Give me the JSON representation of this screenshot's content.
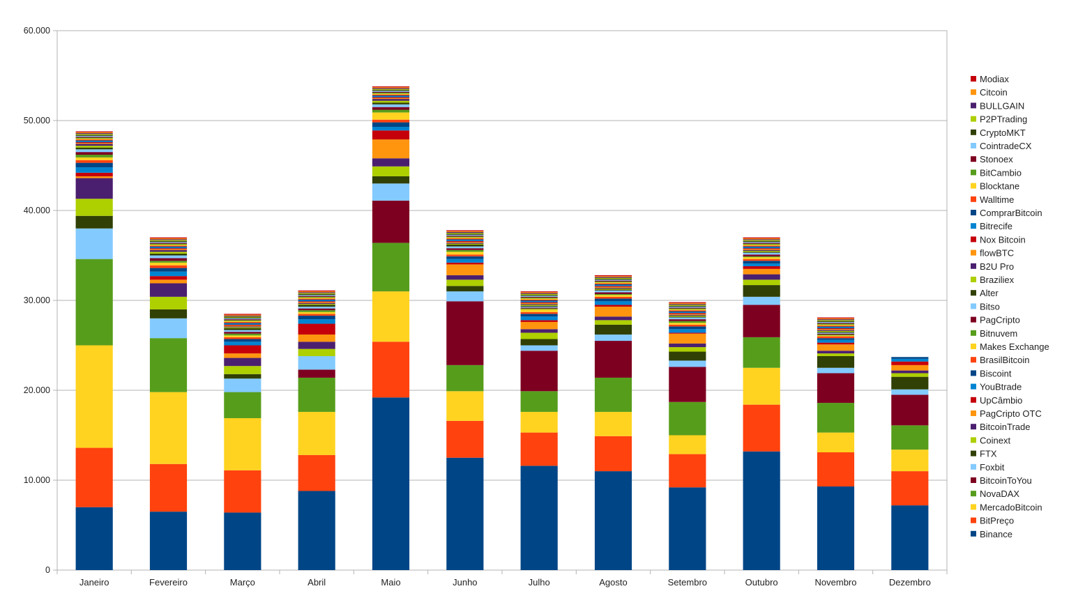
{
  "chart_data": {
    "type": "bar",
    "stacked": true,
    "title": "",
    "xlabel": "",
    "ylabel": "",
    "ylim": [
      0,
      60000
    ],
    "yticks": [
      "0",
      "10.000",
      "20.000",
      "30.000",
      "40.000",
      "50.000",
      "60.000"
    ],
    "grid": true,
    "legend_position": "right",
    "categories": [
      "Janeiro",
      "Fevereiro",
      "Março",
      "Abril",
      "Maio",
      "Junho",
      "Julho",
      "Agosto",
      "Setembro",
      "Outubro",
      "Novembro",
      "Dezembro"
    ],
    "series": [
      {
        "name": "Binance",
        "color": "#004586",
        "values": [
          7000,
          6500,
          6400,
          8800,
          19200,
          12500,
          11600,
          11000,
          9200,
          13200,
          9300,
          7200
        ]
      },
      {
        "name": "BitPreço",
        "color": "#ff420e",
        "values": [
          6600,
          5300,
          4700,
          4000,
          6200,
          4100,
          3700,
          3900,
          3700,
          5200,
          3800,
          3800
        ]
      },
      {
        "name": "MercadoBitcoin",
        "color": "#ffd320",
        "values": [
          11400,
          8000,
          5800,
          4800,
          5600,
          3300,
          2300,
          2700,
          2100,
          4100,
          2200,
          2400
        ]
      },
      {
        "name": "NovaDAX",
        "color": "#579d1c",
        "values": [
          9600,
          6000,
          2900,
          3800,
          5400,
          2900,
          2300,
          3800,
          3700,
          3400,
          3300,
          2700
        ]
      },
      {
        "name": "BitcoinToYou",
        "color": "#7e0021",
        "values": [
          0,
          0,
          0,
          900,
          4700,
          7100,
          4500,
          4100,
          3900,
          3600,
          3300,
          3400
        ]
      },
      {
        "name": "Foxbit",
        "color": "#83caff",
        "values": [
          3400,
          2200,
          1500,
          1500,
          1900,
          1100,
          600,
          700,
          700,
          900,
          600,
          600
        ]
      },
      {
        "name": "FTX",
        "color": "#314004",
        "values": [
          1400,
          1000,
          500,
          0,
          800,
          600,
          700,
          1100,
          1000,
          1300,
          1300,
          1400
        ]
      },
      {
        "name": "Coinext",
        "color": "#aecf00",
        "values": [
          1900,
          1400,
          900,
          800,
          1100,
          700,
          700,
          500,
          500,
          600,
          300,
          400
        ]
      },
      {
        "name": "BitcoinTrade",
        "color": "#4b1f6f",
        "values": [
          2300,
          1500,
          900,
          800,
          900,
          500,
          400,
          400,
          400,
          600,
          300,
          300
        ]
      },
      {
        "name": "PagCripto OTC",
        "color": "#ff950e",
        "values": [
          200,
          400,
          500,
          800,
          2100,
          1200,
          800,
          1100,
          1100,
          600,
          700,
          600
        ]
      },
      {
        "name": "UpCâmbio",
        "color": "#c5000b",
        "values": [
          400,
          400,
          900,
          1200,
          1000,
          200,
          200,
          200,
          100,
          300,
          200,
          400
        ]
      },
      {
        "name": "YouBtrade",
        "color": "#0084d1",
        "values": [
          600,
          500,
          400,
          500,
          400,
          400,
          400,
          400,
          400,
          300,
          300,
          300
        ]
      },
      {
        "name": "Biscoint",
        "color": "#004586",
        "values": [
          500,
          400,
          300,
          400,
          500,
          300,
          300,
          300,
          300,
          300,
          200,
          200
        ]
      },
      {
        "name": "BrasilBitcoin",
        "color": "#ff420e",
        "values": [
          300,
          300,
          200,
          200,
          300,
          200,
          200,
          200,
          200,
          200,
          200,
          0
        ]
      },
      {
        "name": "Makes Exchange",
        "color": "#ffd320",
        "values": [
          300,
          300,
          200,
          200,
          800,
          300,
          300,
          200,
          200,
          200,
          100,
          0
        ]
      },
      {
        "name": "Bitnuvem",
        "color": "#579d1c",
        "values": [
          300,
          200,
          200,
          200,
          300,
          200,
          100,
          100,
          200,
          100,
          100,
          0
        ]
      },
      {
        "name": "PagCripto",
        "color": "#7e0021",
        "values": [
          300,
          300,
          200,
          200,
          300,
          200,
          100,
          200,
          200,
          200,
          100,
          0
        ]
      },
      {
        "name": "Bitso",
        "color": "#83caff",
        "values": [
          300,
          300,
          200,
          200,
          300,
          200,
          100,
          200,
          200,
          200,
          100,
          0
        ]
      },
      {
        "name": "Alter",
        "color": "#314004",
        "values": [
          200,
          200,
          200,
          200,
          200,
          200,
          100,
          100,
          100,
          100,
          100,
          0
        ]
      },
      {
        "name": "Braziliex",
        "color": "#aecf00",
        "values": [
          200,
          200,
          100,
          100,
          200,
          100,
          100,
          100,
          100,
          100,
          100,
          0
        ]
      },
      {
        "name": "B2U Pro",
        "color": "#4b1f6f",
        "values": [
          200,
          200,
          100,
          100,
          200,
          100,
          100,
          100,
          100,
          100,
          100,
          0
        ]
      },
      {
        "name": "flowBTC",
        "color": "#ff950e",
        "values": [
          100,
          100,
          100,
          100,
          100,
          100,
          100,
          100,
          100,
          100,
          100,
          0
        ]
      },
      {
        "name": "Nox Bitcoin",
        "color": "#c5000b",
        "values": [
          100,
          100,
          100,
          100,
          100,
          100,
          100,
          100,
          100,
          100,
          100,
          0
        ]
      },
      {
        "name": "Bitrecife",
        "color": "#0084d1",
        "values": [
          100,
          100,
          100,
          100,
          100,
          100,
          100,
          100,
          100,
          100,
          100,
          0
        ]
      },
      {
        "name": "ComprarBitcoin",
        "color": "#004586",
        "values": [
          100,
          100,
          100,
          100,
          100,
          100,
          100,
          100,
          100,
          100,
          100,
          0
        ]
      },
      {
        "name": "Walltime",
        "color": "#ff420e",
        "values": [
          100,
          100,
          100,
          100,
          100,
          100,
          100,
          100,
          100,
          100,
          100,
          0
        ]
      },
      {
        "name": "Blocktane",
        "color": "#ffd320",
        "values": [
          100,
          100,
          100,
          100,
          100,
          100,
          100,
          100,
          100,
          100,
          100,
          0
        ]
      },
      {
        "name": "BitCambio",
        "color": "#579d1c",
        "values": [
          100,
          100,
          100,
          100,
          100,
          100,
          100,
          100,
          100,
          100,
          100,
          0
        ]
      },
      {
        "name": "Stonoex",
        "color": "#7e0021",
        "values": [
          100,
          100,
          100,
          100,
          100,
          100,
          100,
          100,
          100,
          100,
          100,
          0
        ]
      },
      {
        "name": "CointradeCX",
        "color": "#83caff",
        "values": [
          100,
          100,
          100,
          100,
          100,
          100,
          100,
          100,
          100,
          100,
          100,
          0
        ]
      },
      {
        "name": "CryptoMKT",
        "color": "#314004",
        "values": [
          100,
          100,
          100,
          100,
          100,
          100,
          100,
          100,
          100,
          100,
          100,
          0
        ]
      },
      {
        "name": "P2PTrading",
        "color": "#aecf00",
        "values": [
          100,
          100,
          100,
          100,
          100,
          100,
          100,
          100,
          100,
          100,
          100,
          0
        ]
      },
      {
        "name": "BULLGAIN",
        "color": "#4b1f6f",
        "values": [
          100,
          100,
          100,
          100,
          100,
          100,
          100,
          100,
          100,
          100,
          100,
          0
        ]
      },
      {
        "name": "Citcoin",
        "color": "#ff950e",
        "values": [
          100,
          100,
          100,
          100,
          100,
          100,
          100,
          100,
          100,
          100,
          100,
          0
        ]
      },
      {
        "name": "Modiax",
        "color": "#c5000b",
        "values": [
          100,
          100,
          100,
          100,
          100,
          100,
          100,
          100,
          100,
          100,
          100,
          0
        ]
      }
    ]
  }
}
